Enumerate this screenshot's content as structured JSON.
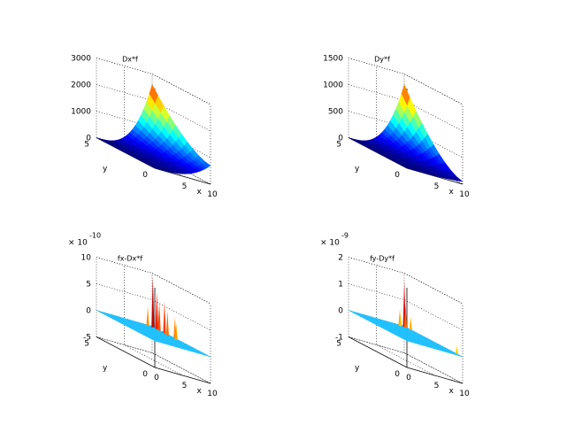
{
  "figure": {
    "background": "#ffffff"
  },
  "chart_data": [
    {
      "type": "surface3d",
      "title": "Dx*f",
      "xlabel": "x",
      "ylabel": "y",
      "zlabel": "",
      "xlim": [
        0,
        10
      ],
      "ylim": [
        0,
        5
      ],
      "zlim": [
        0,
        3000
      ],
      "xticks": [
        "5",
        "10"
      ],
      "yticks": [
        "0",
        "5"
      ],
      "zticks": [
        "0",
        "1000",
        "2000",
        "3000"
      ],
      "z_exponent": "",
      "grid": true,
      "colormap": "jet",
      "surface": {
        "kind": "smooth",
        "x": [
          0,
          10
        ],
        "y": [
          0,
          5
        ],
        "z_corners": {
          "x0y0": 0,
          "x10y0": 700,
          "x0y5": 0,
          "x10y5": 2600
        },
        "note_z_peak": 2600
      }
    },
    {
      "type": "surface3d",
      "title": "Dy*f",
      "xlabel": "x",
      "ylabel": "y",
      "zlabel": "",
      "xlim": [
        0,
        10
      ],
      "ylim": [
        0,
        5
      ],
      "zlim": [
        0,
        1500
      ],
      "xticks": [
        "5",
        "10"
      ],
      "yticks": [
        "0",
        "5"
      ],
      "zticks": [
        "0",
        "500",
        "1000",
        "1500"
      ],
      "z_exponent": "",
      "grid": true,
      "colormap": "jet",
      "surface": {
        "kind": "smooth",
        "x": [
          0,
          10
        ],
        "y": [
          0,
          5
        ],
        "z_corners": {
          "x0y0": 0,
          "x10y0": 50,
          "x0y5": 0,
          "x10y5": 1300
        },
        "note_z_peak": 1300
      }
    },
    {
      "type": "surface3d",
      "title": "fx-Dx*f",
      "xlabel": "x",
      "ylabel": "y",
      "zlabel": "",
      "xlim": [
        0,
        10
      ],
      "ylim": [
        0,
        5
      ],
      "zlim": [
        -5,
        10
      ],
      "xticks": [
        "0",
        "5",
        "10"
      ],
      "yticks": [
        "0",
        "5"
      ],
      "zticks": [
        "-5",
        "0",
        "5",
        "10"
      ],
      "z_exponent": "-10",
      "z_multiplier": "× 10",
      "grid": true,
      "colormap": "jet",
      "surface": {
        "kind": "noise",
        "flat_value": 0,
        "spikes": [
          {
            "x": 9.5,
            "y": 4.7,
            "z": 9.5
          },
          {
            "x": 9.8,
            "y": 4.5,
            "z": 7.0
          },
          {
            "x": 9.6,
            "y": 4.2,
            "z": 5.5
          },
          {
            "x": 9.7,
            "y": 3.8,
            "z": 6.0
          },
          {
            "x": 9.4,
            "y": 3.4,
            "z": 4.5
          },
          {
            "x": 9.9,
            "y": 3.0,
            "z": 4.0
          },
          {
            "x": 9.3,
            "y": 2.6,
            "z": 3.0
          },
          {
            "x": 9.0,
            "y": 4.9,
            "z": 3.5
          }
        ]
      }
    },
    {
      "type": "surface3d",
      "title": "fy-Dy*f",
      "xlabel": "x",
      "ylabel": "y",
      "zlabel": "",
      "xlim": [
        0,
        10
      ],
      "ylim": [
        0,
        5
      ],
      "zlim": [
        -1,
        2
      ],
      "xticks": [
        "0",
        "5",
        "10"
      ],
      "yticks": [
        "0",
        "5"
      ],
      "zticks": [
        "-1",
        "0",
        "1",
        "2"
      ],
      "z_exponent": "-9",
      "z_multiplier": "× 10",
      "grid": true,
      "colormap": "jet",
      "surface": {
        "kind": "noise",
        "flat_value": 0,
        "spikes": [
          {
            "x": 9.6,
            "y": 4.8,
            "z": 1.7
          },
          {
            "x": 9.4,
            "y": 4.6,
            "z": 0.9
          },
          {
            "x": 9.0,
            "y": 4.9,
            "z": 0.6
          },
          {
            "x": 8.7,
            "y": 4.7,
            "z": 0.4
          },
          {
            "x": 9.9,
            "y": 4.4,
            "z": 0.5
          },
          {
            "x": 10,
            "y": 0.5,
            "z": 0.3
          }
        ]
      }
    }
  ]
}
